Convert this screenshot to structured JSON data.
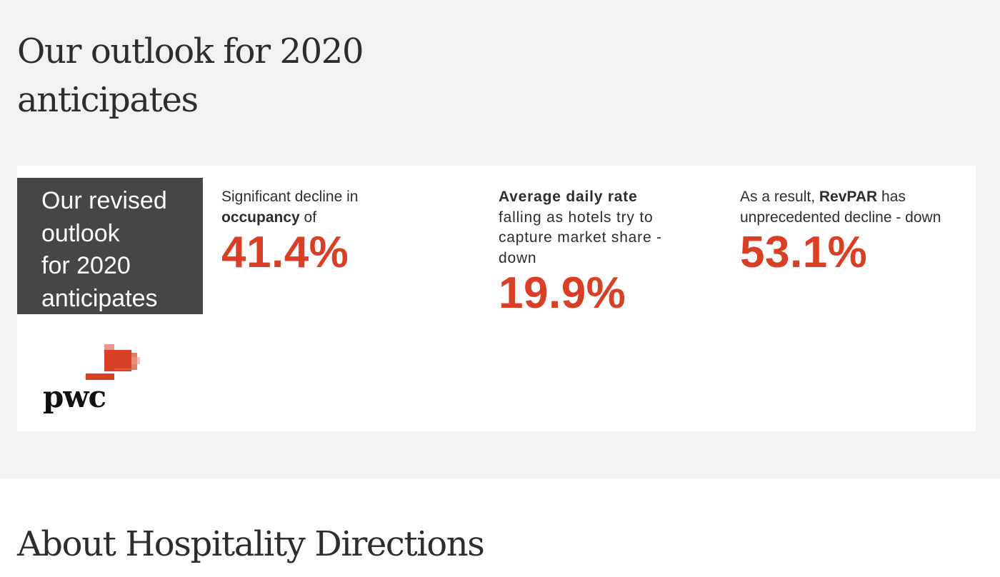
{
  "section": {
    "heading": "Our outlook for 2020 anticipates"
  },
  "infographic": {
    "revised_box": {
      "line1": "Our revised",
      "line2": "outlook",
      "line3": "for 2020",
      "line4": "anticipates"
    },
    "occupancy": {
      "text_line1": "Significant decline in",
      "bold": "occupancy",
      "text_after": " of",
      "value": "41.4%"
    },
    "adr": {
      "bold": "Average daily rate",
      "text_line2": "falling as hotels try to",
      "text_line3": "capture market share -",
      "text_line4": "down",
      "value": "19.9%"
    },
    "revpar": {
      "text_before": "As a result, ",
      "bold": "RevPAR",
      "text_after": " has",
      "text_line2": "unprecedented decline - down",
      "value": "53.1%"
    },
    "logo": {
      "wordmark": "pwc",
      "icon": "pwc-logo-icon",
      "accent_color": "#d93f25"
    }
  },
  "about": {
    "heading": "About Hospitality Directions"
  },
  "colors": {
    "accent": "#d93f25",
    "box_dark": "#464646",
    "section_bg": "#f2f2f2"
  }
}
